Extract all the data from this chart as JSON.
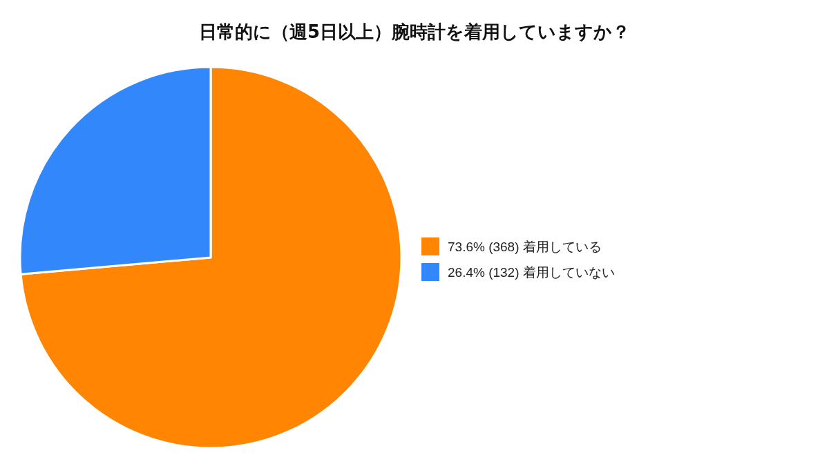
{
  "chart_data": {
    "type": "pie",
    "title": "日常的に（週5日以上）腕時計を着用していますか？",
    "categories": [
      "着用している",
      "着用していない"
    ],
    "values": [
      368,
      132
    ],
    "colors": [
      "#ff8503",
      "#3288fb"
    ],
    "value_labels": [
      "73.6%  (368)",
      "26.4%  (132)"
    ],
    "legend": "right"
  }
}
